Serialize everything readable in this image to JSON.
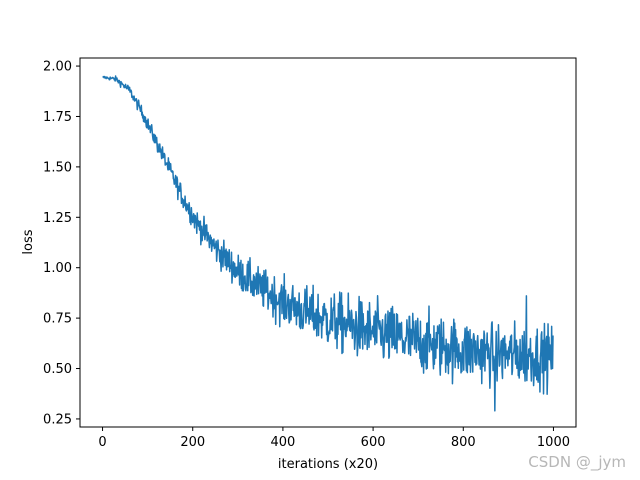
{
  "chart_data": {
    "type": "line",
    "xlabel": "iterations (x20)",
    "ylabel": "loss",
    "xlim": [
      -50,
      1050
    ],
    "ylim": [
      0.21,
      2.04
    ],
    "xticks": [
      0,
      200,
      400,
      600,
      800,
      1000
    ],
    "yticks": [
      0.25,
      0.5,
      0.75,
      1.0,
      1.25,
      1.5,
      1.75,
      2.0
    ],
    "xtick_labels": [
      "0",
      "200",
      "400",
      "600",
      "800",
      "1000"
    ],
    "ytick_labels": [
      "0.25",
      "0.50",
      "0.75",
      "1.00",
      "1.25",
      "1.50",
      "1.75",
      "2.00"
    ],
    "grid": false,
    "series": [
      {
        "color": "#1f77b4",
        "num_points": 1000,
        "trend_points": [
          [
            0,
            1.945
          ],
          [
            30,
            1.935
          ],
          [
            60,
            1.88
          ],
          [
            90,
            1.76
          ],
          [
            120,
            1.62
          ],
          [
            150,
            1.48
          ],
          [
            180,
            1.34
          ],
          [
            210,
            1.22
          ],
          [
            250,
            1.1
          ],
          [
            300,
            0.98
          ],
          [
            350,
            0.9
          ],
          [
            400,
            0.83
          ],
          [
            450,
            0.78
          ],
          [
            500,
            0.74
          ],
          [
            600,
            0.68
          ],
          [
            700,
            0.63
          ],
          [
            800,
            0.59
          ],
          [
            900,
            0.57
          ],
          [
            1000,
            0.56
          ]
        ],
        "min_point": [
          870,
          0.29
        ],
        "max_point_late": [
          940,
          0.86
        ]
      }
    ]
  },
  "watermark": "CSDN @_jym"
}
